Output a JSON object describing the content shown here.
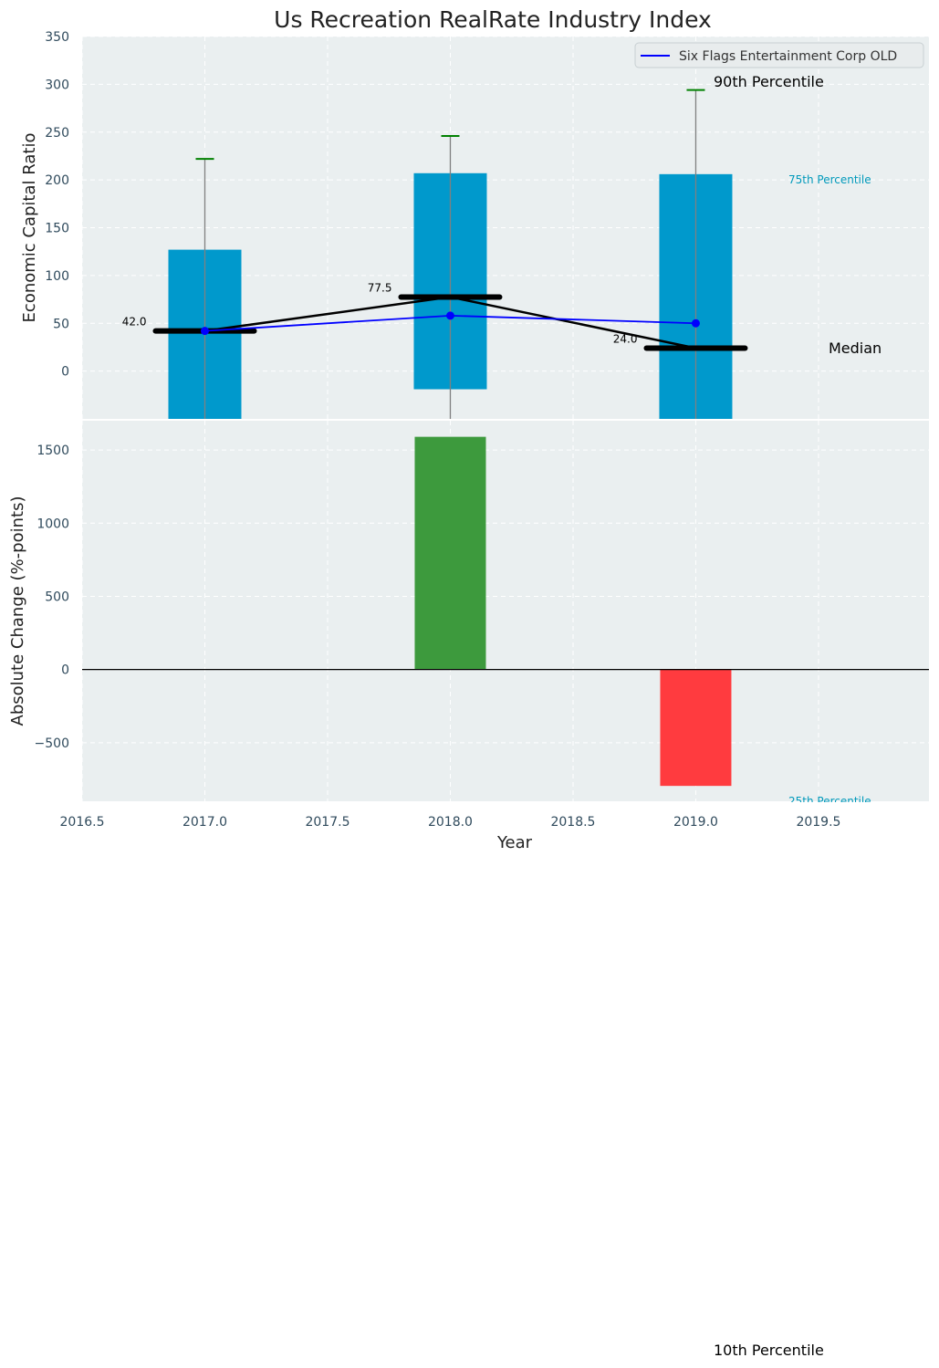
{
  "title": "Us Recreation RealRate Industry Index",
  "colors": {
    "panel_bg": "#eaeff0",
    "grid": "#ffffff",
    "tick_text": "#2f4a5c",
    "box_fill": "#0099cc",
    "whisker": "#808080",
    "cap": "#008000",
    "median": "#000000",
    "company_line": "#0000ff",
    "positive_bar": "#3d9a3d",
    "negative_bar": "#ff3b3f",
    "percentile_label": "#0099bb"
  },
  "chart_data": [
    {
      "type": "bar",
      "panel": "top",
      "ylabel": "Economic Capital Ratio",
      "ylim": [
        -50,
        350
      ],
      "yticks": [
        0,
        50,
        100,
        150,
        200,
        250,
        300,
        350
      ],
      "grid": true,
      "legend": {
        "placement": "top-right",
        "entries": [
          "Six Flags Entertainment Corp OLD"
        ]
      },
      "categories": [
        2017,
        2018,
        2019
      ],
      "percentile_boxes": [
        {
          "x": 2017,
          "p25": -50,
          "p75": 127,
          "p10": -50,
          "p90": 222,
          "median": 42.0,
          "median_label": "42.0"
        },
        {
          "x": 2018,
          "p25": -19,
          "p75": 207,
          "p10": -50,
          "p90": 246,
          "median": 77.5,
          "median_label": "77.5"
        },
        {
          "x": 2019,
          "p25": -50,
          "p75": 206,
          "p10": -50,
          "p90": 294,
          "median": 24.0,
          "median_label": "24.0"
        }
      ],
      "series": [
        {
          "name": "Six Flags Entertainment Corp OLD",
          "x": [
            2017,
            2018,
            2019
          ],
          "values": [
            42,
            58,
            50
          ]
        }
      ],
      "annotations": {
        "p90": "90th Percentile",
        "p75": "75th Percentile",
        "median": "Median",
        "p25": "25th Percentile",
        "p10": "10th Percentile"
      }
    },
    {
      "type": "bar",
      "panel": "bottom",
      "xlabel": "Year",
      "ylabel": "Absolute Change (%-points)",
      "xlim": [
        2016.5,
        2019.95
      ],
      "xticks": [
        "2016.5",
        "2017.0",
        "2017.5",
        "2018.0",
        "2018.5",
        "2019.0",
        "2019.5"
      ],
      "ylim": [
        -900,
        1700
      ],
      "yticks": [
        -500,
        0,
        500,
        1000,
        1500
      ],
      "ytick_labels": [
        "−500",
        "0",
        "500",
        "1000",
        "1500"
      ],
      "grid": true,
      "x": [
        2018,
        2019
      ],
      "values": [
        1590,
        -795
      ]
    }
  ]
}
